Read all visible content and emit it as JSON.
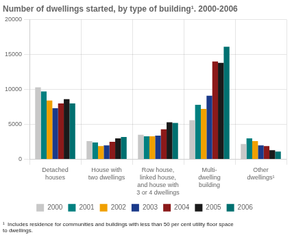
{
  "chart_data": {
    "type": "bar",
    "title": "Number of dwellings started, by type of building¹. 2000-2006",
    "footnote": "¹  Includes residence for communities and buildings with less than 50 per cent utility floor space\nto dwellings.",
    "categories": [
      "Detached\nhouses",
      "House with\ntwo dwellings",
      "Row house,\nlinked house,\nand house with\n3 or 4 dwellings",
      "Multi-\ndwelling\nbuilding",
      "Other\ndwellings¹"
    ],
    "series": [
      {
        "name": "2000",
        "color": "#c8c8c8",
        "values": [
          10300,
          2600,
          3500,
          5600,
          2200
        ]
      },
      {
        "name": "2001",
        "color": "#008080",
        "values": [
          9700,
          2400,
          3300,
          7800,
          3000
        ]
      },
      {
        "name": "2002",
        "color": "#f0a000",
        "values": [
          8400,
          1900,
          3300,
          7200,
          2600
        ]
      },
      {
        "name": "2003",
        "color": "#1a3a8a",
        "values": [
          7300,
          2000,
          3400,
          9100,
          2000
        ]
      },
      {
        "name": "2004",
        "color": "#8b1a1a",
        "values": [
          8000,
          2500,
          4300,
          14000,
          1900
        ]
      },
      {
        "name": "2005",
        "color": "#1a1a1a",
        "values": [
          8600,
          3000,
          5300,
          13800,
          1300
        ]
      },
      {
        "name": "2006",
        "color": "#007070",
        "values": [
          8000,
          3200,
          5200,
          16100,
          1100
        ]
      }
    ],
    "ylim": [
      0,
      20000
    ],
    "yticks": [
      0,
      5000,
      10000,
      15000,
      20000
    ],
    "grid": true,
    "legend": "bottom"
  }
}
